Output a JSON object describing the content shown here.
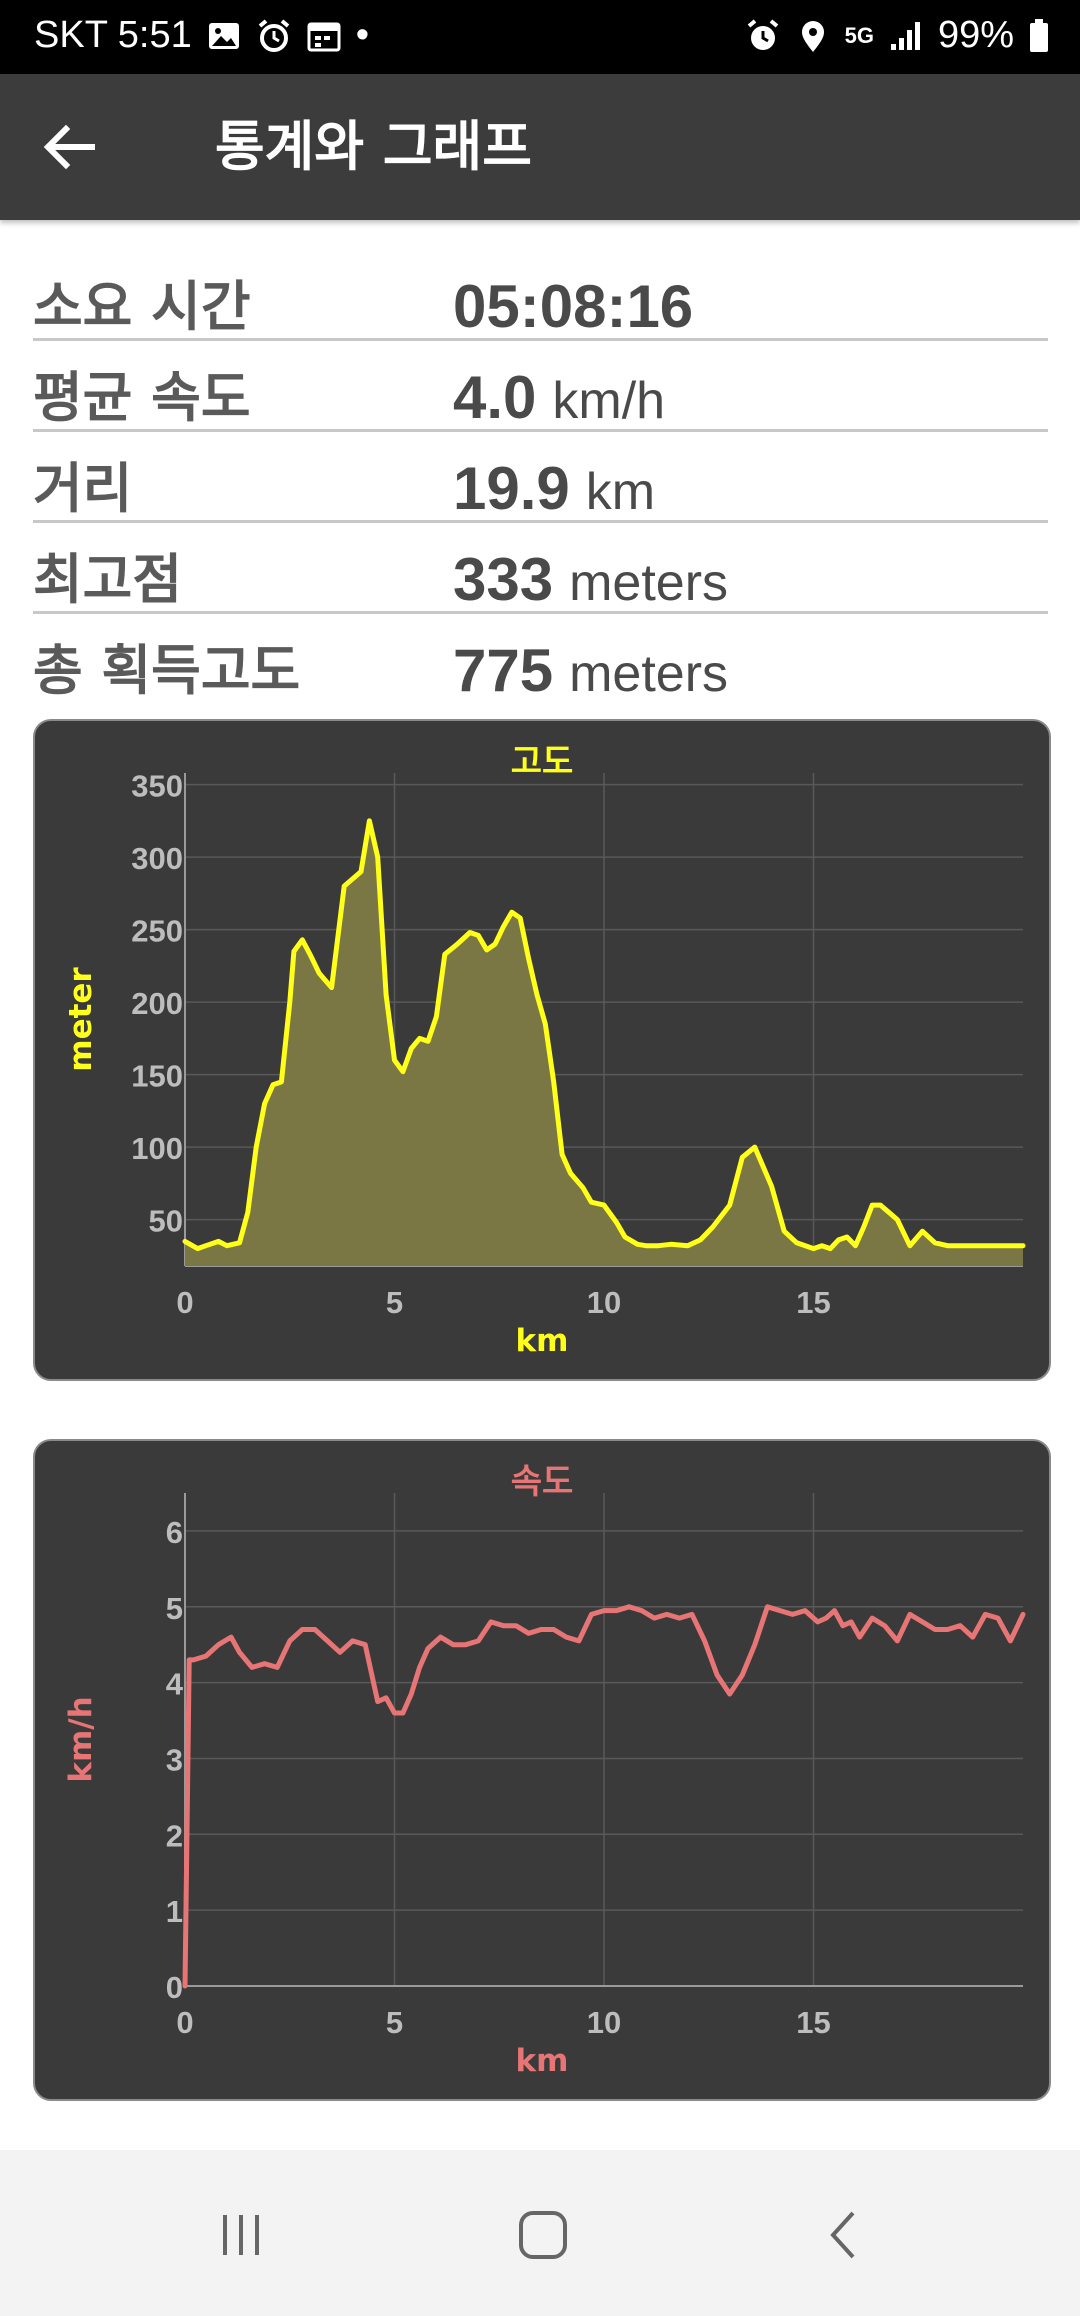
{
  "status_bar": {
    "carrier_time": "SKT 5:51",
    "dot": "•",
    "network": "5G",
    "battery": "99%",
    "left_icons": [
      "image-icon",
      "alarm-icon",
      "calendar-icon"
    ],
    "right_icons": [
      "alarm-icon",
      "location-icon",
      "5g-icon",
      "signal-icon",
      "battery-icon"
    ]
  },
  "app_bar": {
    "title": "통계와 그래프",
    "back_icon": "arrow-left-icon"
  },
  "stats": [
    {
      "label": "소요 시간",
      "value": "05:08:16",
      "unit": ""
    },
    {
      "label": "평균 속도",
      "value": "4.0",
      "unit": "km/h"
    },
    {
      "label": "거리",
      "value": "19.9",
      "unit": "km"
    },
    {
      "label": "최고점",
      "value": "333",
      "unit": "meters"
    },
    {
      "label": "총 획득고도",
      "value": "775",
      "unit": "meters"
    }
  ],
  "colors": {
    "altitude": "#ffff1a",
    "altitude_fill": "#7a7744",
    "speed": "#e87575",
    "card_bg": "#3a3a3a"
  },
  "chart_data": [
    {
      "type": "area",
      "title": "고도",
      "xlabel": "km",
      "ylabel": "meter",
      "xlim": [
        0,
        20
      ],
      "ylim": [
        18,
        358
      ],
      "xticks": [
        0,
        5,
        10,
        15
      ],
      "yticks": [
        50,
        100,
        150,
        200,
        250,
        300,
        350
      ],
      "grid": true,
      "x": [
        0,
        0.3,
        0.5,
        0.8,
        1.0,
        1.3,
        1.5,
        1.7,
        1.9,
        2.1,
        2.3,
        2.5,
        2.6,
        2.8,
        3.0,
        3.2,
        3.5,
        3.8,
        4.0,
        4.2,
        4.4,
        4.6,
        4.8,
        5.0,
        5.2,
        5.4,
        5.6,
        5.8,
        6.0,
        6.2,
        6.5,
        6.8,
        7.0,
        7.2,
        7.4,
        7.6,
        7.8,
        8.0,
        8.2,
        8.4,
        8.6,
        8.8,
        9.0,
        9.2,
        9.5,
        9.7,
        10.0,
        10.3,
        10.5,
        10.8,
        11.0,
        11.3,
        11.6,
        12.0,
        12.3,
        12.6,
        13.0,
        13.3,
        13.6,
        14.0,
        14.3,
        14.6,
        15.0,
        15.2,
        15.4,
        15.6,
        15.8,
        16.0,
        16.2,
        16.4,
        16.6,
        17.0,
        17.3,
        17.6,
        17.9,
        18.2,
        18.5,
        18.8,
        19.0,
        19.2,
        19.4,
        19.6,
        20.0
      ],
      "y": [
        35,
        30,
        32,
        35,
        32,
        34,
        55,
        100,
        130,
        143,
        145,
        200,
        235,
        243,
        232,
        220,
        210,
        280,
        285,
        290,
        325,
        300,
        205,
        160,
        152,
        168,
        175,
        173,
        190,
        233,
        240,
        248,
        246,
        236,
        240,
        252,
        262,
        258,
        230,
        205,
        185,
        145,
        95,
        82,
        72,
        62,
        60,
        48,
        38,
        33,
        32,
        32,
        33,
        32,
        36,
        45,
        60,
        93,
        100,
        73,
        42,
        34,
        30,
        32,
        30,
        36,
        38,
        32,
        45,
        60,
        60,
        50,
        32,
        42,
        34,
        32,
        32,
        32,
        32,
        32,
        32,
        32,
        32
      ]
    },
    {
      "type": "line",
      "title": "속도",
      "xlabel": "km",
      "ylabel": "km/h",
      "xlim": [
        0,
        20
      ],
      "ylim": [
        0,
        6.5
      ],
      "xticks": [
        0,
        5,
        10,
        15
      ],
      "yticks": [
        0,
        1,
        2,
        3,
        4,
        5,
        6
      ],
      "grid": true,
      "x": [
        0,
        0.1,
        0.2,
        0.5,
        0.8,
        1.1,
        1.3,
        1.6,
        1.9,
        2.2,
        2.5,
        2.8,
        3.1,
        3.4,
        3.7,
        4.0,
        4.3,
        4.6,
        4.8,
        5.0,
        5.2,
        5.4,
        5.6,
        5.8,
        6.1,
        6.4,
        6.7,
        7.0,
        7.3,
        7.6,
        7.9,
        8.2,
        8.5,
        8.8,
        9.1,
        9.4,
        9.7,
        10.0,
        10.3,
        10.6,
        10.9,
        11.2,
        11.5,
        11.8,
        12.1,
        12.4,
        12.7,
        13.0,
        13.3,
        13.6,
        13.9,
        14.2,
        14.5,
        14.8,
        15.1,
        15.3,
        15.5,
        15.7,
        15.9,
        16.1,
        16.4,
        16.7,
        17.0,
        17.3,
        17.6,
        17.9,
        18.2,
        18.5,
        18.8,
        19.1,
        19.4,
        19.7,
        20.0
      ],
      "y": [
        0,
        4.3,
        4.3,
        4.35,
        4.5,
        4.6,
        4.4,
        4.2,
        4.25,
        4.2,
        4.55,
        4.7,
        4.7,
        4.55,
        4.4,
        4.55,
        4.5,
        3.75,
        3.8,
        3.6,
        3.6,
        3.85,
        4.2,
        4.45,
        4.6,
        4.5,
        4.5,
        4.55,
        4.8,
        4.75,
        4.75,
        4.65,
        4.7,
        4.7,
        4.6,
        4.55,
        4.9,
        4.95,
        4.95,
        5.0,
        4.95,
        4.85,
        4.9,
        4.85,
        4.9,
        4.55,
        4.1,
        3.85,
        4.1,
        4.5,
        5.0,
        4.95,
        4.9,
        4.95,
        4.8,
        4.85,
        4.95,
        4.75,
        4.8,
        4.6,
        4.85,
        4.75,
        4.55,
        4.9,
        4.8,
        4.7,
        4.7,
        4.75,
        4.6,
        4.9,
        4.85,
        4.55,
        4.9
      ]
    }
  ]
}
